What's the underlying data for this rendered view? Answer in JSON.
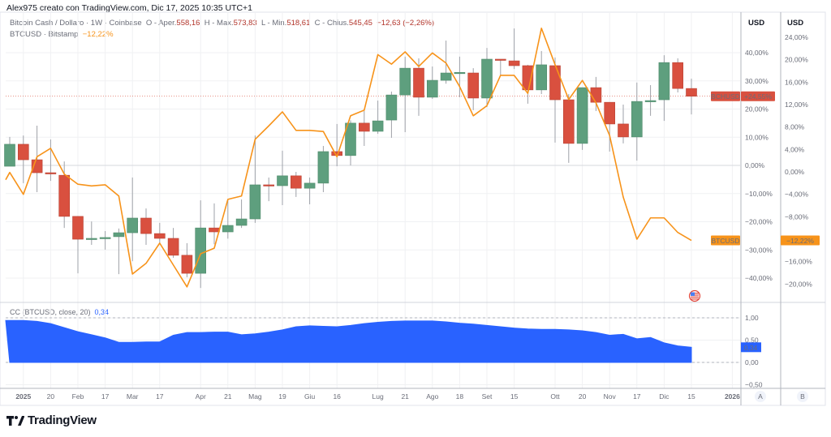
{
  "header": {
    "credit": "Alex975 creato con TradingView.com, Dic 17, 2025 10:35 UTC+1",
    "symbol": "Bitcoin Cash / Dollaro · 1W · Coinbase",
    "open_label": "O - Aper.",
    "open": "558,16",
    "high_label": "H - Max.",
    "high": "573,83",
    "low_label": "L - Min.",
    "low": "518,61",
    "close_label": "C - Chius.",
    "close": "545,45",
    "change": "−12,63 (−2,26%)",
    "compare_symbol": "BTCUSD · Bitstamp",
    "compare_change": "−12,22%"
  },
  "indicator": {
    "label": "CC (BTCUSD, close, 20)",
    "value": "0,34"
  },
  "axes": {
    "left_unit": "USD",
    "right_unit": "USD",
    "left_ticks": [
      "40,00%",
      "30,00%",
      "20,00%",
      "10,00%",
      "0,00%",
      "−10,00%",
      "−20,00%",
      "−30,00%",
      "−40,00%"
    ],
    "left_tick_values": [
      40,
      30,
      20,
      10,
      0,
      -10,
      -20,
      -30,
      -40
    ],
    "right_ticks": [
      "24,00%",
      "20,00%",
      "16,00%",
      "12,00%",
      "8,00%",
      "4,00%",
      "0,00%",
      "−4,00%",
      "−8,00%",
      "−16,00%",
      "−20,00%"
    ],
    "right_tick_values": [
      24,
      20,
      16,
      12,
      8,
      4,
      0,
      -4,
      -8,
      -16,
      -20
    ],
    "ind_ticks": [
      "1,00",
      "0,50",
      "0,00",
      "−0,50"
    ],
    "ind_tick_values": [
      1,
      0.5,
      0,
      -0.5
    ],
    "scale_buttons": [
      "A",
      "B"
    ]
  },
  "tags": {
    "bch_name": "BCHUSD",
    "bch_value": "+24,55%",
    "btc_name": "BTCUSD",
    "btc_value": "−12,22%"
  },
  "time_labels": [
    {
      "label": "2025",
      "i": 1,
      "bold": true
    },
    {
      "label": "20",
      "i": 3
    },
    {
      "label": "Feb",
      "i": 5
    },
    {
      "label": "17",
      "i": 7
    },
    {
      "label": "Mar",
      "i": 9
    },
    {
      "label": "17",
      "i": 11
    },
    {
      "label": "Apr",
      "i": 14
    },
    {
      "label": "21",
      "i": 16
    },
    {
      "label": "Mag",
      "i": 18
    },
    {
      "label": "19",
      "i": 20
    },
    {
      "label": "Giu",
      "i": 22
    },
    {
      "label": "16",
      "i": 24
    },
    {
      "label": "Lug",
      "i": 27
    },
    {
      "label": "21",
      "i": 29
    },
    {
      "label": "Ago",
      "i": 31
    },
    {
      "label": "18",
      "i": 33
    },
    {
      "label": "Set",
      "i": 35
    },
    {
      "label": "15",
      "i": 37
    },
    {
      "label": "Ott",
      "i": 40
    },
    {
      "label": "20",
      "i": 42
    },
    {
      "label": "Nov",
      "i": 44
    },
    {
      "label": "17",
      "i": 46
    },
    {
      "label": "Dic",
      "i": 48
    },
    {
      "label": "15",
      "i": 50
    },
    {
      "label": "2026",
      "i": 53,
      "bold": true
    }
  ],
  "colors": {
    "up": "#5e9f7e",
    "down": "#d9503f",
    "btc": "#f7931a",
    "corr": "#2962ff",
    "grid": "#f0f1f3"
  },
  "icons": {
    "event": "us-flag-event-icon",
    "logo": "tradingview-logo-icon"
  },
  "brand": "TradingView",
  "chart_data": {
    "type": "candlestick+line+area",
    "interval": "1W",
    "bchusd_percent_ohlc": [
      [
        -0.3,
        10.1,
        -0.3,
        7.5
      ],
      [
        7.5,
        10.6,
        -6.3,
        2.0
      ],
      [
        2.0,
        14.1,
        -9.5,
        -2.6
      ],
      [
        -2.6,
        9.2,
        -5.5,
        -2.9
      ],
      [
        -3.5,
        1.4,
        -22.2,
        -18.1
      ],
      [
        -18.1,
        -18,
        -38.3,
        -26.2
      ],
      [
        -26.2,
        -19.9,
        -28.2,
        -25.9
      ],
      [
        -25.9,
        -23.3,
        -29.9,
        -25.6
      ],
      [
        -25.3,
        -22.4,
        -38.6,
        -23.9
      ],
      [
        -23.9,
        -4.3,
        -34.0,
        -18.7
      ],
      [
        -18.7,
        -15.3,
        -28.2,
        -24.2
      ],
      [
        -24.2,
        -20.4,
        -28,
        -25.9
      ],
      [
        -25.9,
        -22.2,
        -32.8,
        -31.9
      ],
      [
        -31.9,
        -27.6,
        -39.7,
        -38.3
      ],
      [
        -38.3,
        -12.4,
        -43.5,
        -22.2
      ],
      [
        -22.2,
        -13.5,
        -28,
        -23.6
      ],
      [
        -23.6,
        -12.1,
        -26,
        -21.3
      ],
      [
        -21.3,
        -12.1,
        -22.2,
        -19.0
      ],
      [
        -19.0,
        10.6,
        -20.4,
        -6.9
      ],
      [
        -6.9,
        -4.3,
        -12.7,
        -7.2
      ],
      [
        -7.2,
        5.2,
        -14.1,
        -3.7
      ],
      [
        -3.7,
        -2.3,
        -11.2,
        -8.1
      ],
      [
        -8.1,
        -4.3,
        -13.8,
        -6.3
      ],
      [
        -6.3,
        6.9,
        -9.5,
        4.9
      ],
      [
        4.9,
        14.7,
        -0.3,
        3.5
      ],
      [
        3.5,
        16,
        0,
        15.0
      ],
      [
        15.0,
        19.3,
        6.9,
        12.1
      ],
      [
        12.1,
        23.0,
        11.2,
        15.8
      ],
      [
        16.1,
        26.2,
        9.8,
        25.0
      ],
      [
        25.0,
        38.6,
        11.8,
        34.5
      ],
      [
        34.5,
        38,
        17.6,
        24.2
      ],
      [
        24.2,
        35.1,
        23.6,
        30.2
      ],
      [
        30.2,
        44.3,
        29,
        32.8
      ],
      [
        32.8,
        38.6,
        24.2,
        33.0
      ],
      [
        32.8,
        34.5,
        19.6,
        23.9
      ],
      [
        23.9,
        41.7,
        20.7,
        37.7
      ],
      [
        37.7,
        37.7,
        31.9,
        37.4
      ],
      [
        37.1,
        48.6,
        34.2,
        35.4
      ],
      [
        35.4,
        35.7,
        21.9,
        26.8
      ],
      [
        26.8,
        40.6,
        25.3,
        35.7
      ],
      [
        35.4,
        38.3,
        8.1,
        23.3
      ],
      [
        23.3,
        25.3,
        0.9,
        7.8
      ],
      [
        7.8,
        27.6,
        5.5,
        27.6
      ],
      [
        27.6,
        31.4,
        19.3,
        22.4
      ],
      [
        22.4,
        22.4,
        4.9,
        14.7
      ],
      [
        14.7,
        21.6,
        7.8,
        10.1
      ],
      [
        10.1,
        29.4,
        1.7,
        22.7
      ],
      [
        22.7,
        28.5,
        17.6,
        23.0
      ],
      [
        23.3,
        39.1,
        15.8,
        36.5
      ],
      [
        36.5,
        38,
        25.9,
        27.3
      ],
      [
        27.3,
        30.8,
        18.1,
        24.55
      ]
    ],
    "btcusd_percent": [
      -0.1,
      -4.0,
      2.7,
      4.2,
      -0.4,
      -2.2,
      -2.5,
      -2.3,
      -4.3,
      -18.2,
      -16.3,
      -12.7,
      -16.6,
      -20.5,
      -14.6,
      -13.6,
      -4.9,
      -4.3,
      5.8,
      8.2,
      10.7,
      7.4,
      7.4,
      7.2,
      2.7,
      10.0,
      11.0,
      20.9,
      19.2,
      21.4,
      18.8,
      21.2,
      19.4,
      15.2,
      10.0,
      11.8,
      17.2,
      17.2,
      14.0,
      25.6,
      19.1,
      12.9,
      16.3,
      12.3,
      6.5,
      -4.5,
      -12.0,
      -8.2,
      -8.2,
      -10.8,
      -12.22
    ],
    "correlation": [
      0.94,
      0.94,
      0.92,
      0.87,
      0.78,
      0.69,
      0.62,
      0.55,
      0.45,
      0.45,
      0.46,
      0.46,
      0.61,
      0.67,
      0.67,
      0.68,
      0.68,
      0.62,
      0.64,
      0.68,
      0.73,
      0.8,
      0.82,
      0.81,
      0.8,
      0.83,
      0.87,
      0.9,
      0.92,
      0.93,
      0.93,
      0.93,
      0.91,
      0.88,
      0.86,
      0.83,
      0.8,
      0.77,
      0.75,
      0.74,
      0.74,
      0.73,
      0.71,
      0.67,
      0.61,
      0.63,
      0.53,
      0.56,
      0.44,
      0.37,
      0.34
    ],
    "left_ylim": [
      -47,
      55
    ],
    "right_ylim": [
      -24,
      28
    ],
    "ind_ylim": [
      -0.6,
      1.2
    ],
    "grid": true
  }
}
